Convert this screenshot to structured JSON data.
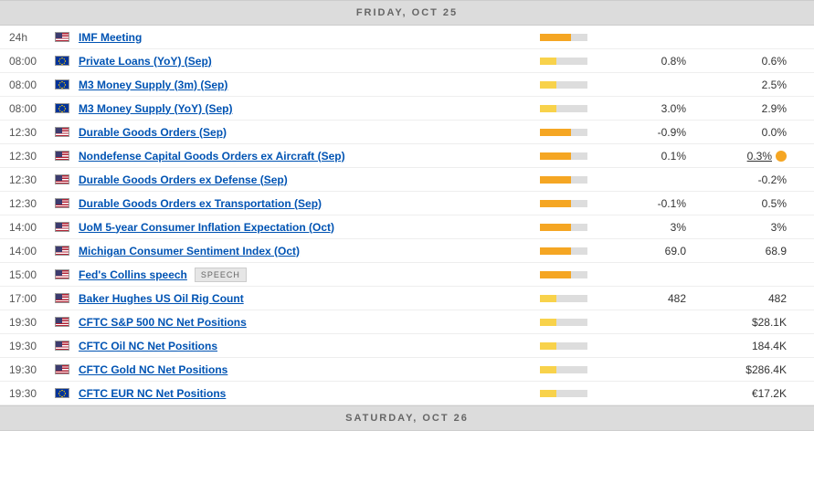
{
  "colors": {
    "bar_bg": "#dddddd",
    "bar_orange": "#f5a623",
    "bar_yellow": "#f8d24b",
    "link": "#0053b3"
  },
  "headers": {
    "friday": "FRIDAY, OCT 25",
    "saturday": "SATURDAY, OCT 26"
  },
  "events": [
    {
      "time": "24h",
      "flag": "us",
      "name": "IMF Meeting",
      "bar_color": "#f5a623",
      "bar_pct": 65,
      "val1": "",
      "val2": ""
    },
    {
      "time": "08:00",
      "flag": "eu",
      "name": "Private Loans (YoY) (Sep)",
      "bar_color": "#f8d24b",
      "bar_pct": 35,
      "val1": "0.8%",
      "val2": "0.6%"
    },
    {
      "time": "08:00",
      "flag": "eu",
      "name": "M3 Money Supply (3m) (Sep)",
      "bar_color": "#f8d24b",
      "bar_pct": 35,
      "val1": "",
      "val2": "2.5%"
    },
    {
      "time": "08:00",
      "flag": "eu",
      "name": "M3 Money Supply (YoY) (Sep)",
      "bar_color": "#f8d24b",
      "bar_pct": 35,
      "val1": "3.0%",
      "val2": "2.9%"
    },
    {
      "time": "12:30",
      "flag": "us",
      "name": "Durable Goods Orders (Sep)",
      "bar_color": "#f5a623",
      "bar_pct": 65,
      "val1": "-0.9%",
      "val2": "0.0%"
    },
    {
      "time": "12:30",
      "flag": "us",
      "name": "Nondefense Capital Goods Orders ex Aircraft (Sep)",
      "bar_color": "#f5a623",
      "bar_pct": 65,
      "val1": "0.1%",
      "val2": "0.3%",
      "val2_icon": true,
      "val2_link": true
    },
    {
      "time": "12:30",
      "flag": "us",
      "name": "Durable Goods Orders ex Defense (Sep)",
      "bar_color": "#f5a623",
      "bar_pct": 65,
      "val1": "",
      "val2": "-0.2%"
    },
    {
      "time": "12:30",
      "flag": "us",
      "name": "Durable Goods Orders ex Transportation (Sep)",
      "bar_color": "#f5a623",
      "bar_pct": 65,
      "val1": "-0.1%",
      "val2": "0.5%"
    },
    {
      "time": "14:00",
      "flag": "us",
      "name": "UoM 5-year Consumer Inflation Expectation (Oct)",
      "bar_color": "#f5a623",
      "bar_pct": 65,
      "val1": "3%",
      "val2": "3%"
    },
    {
      "time": "14:00",
      "flag": "us",
      "name": "Michigan Consumer Sentiment Index (Oct)",
      "bar_color": "#f5a623",
      "bar_pct": 65,
      "val1": "69.0",
      "val2": "68.9"
    },
    {
      "time": "15:00",
      "flag": "us",
      "name": "Fed's Collins speech",
      "badge": "SPEECH",
      "bar_color": "#f5a623",
      "bar_pct": 65,
      "val1": "",
      "val2": ""
    },
    {
      "time": "17:00",
      "flag": "us",
      "name": "Baker Hughes US Oil Rig Count",
      "bar_color": "#f8d24b",
      "bar_pct": 35,
      "val1": "482",
      "val2": "482"
    },
    {
      "time": "19:30",
      "flag": "us",
      "name": "CFTC S&P 500 NC Net Positions",
      "bar_color": "#f8d24b",
      "bar_pct": 35,
      "val1": "",
      "val2": "$28.1K"
    },
    {
      "time": "19:30",
      "flag": "us",
      "name": "CFTC Oil NC Net Positions",
      "bar_color": "#f8d24b",
      "bar_pct": 35,
      "val1": "",
      "val2": "184.4K"
    },
    {
      "time": "19:30",
      "flag": "us",
      "name": "CFTC Gold NC Net Positions",
      "bar_color": "#f8d24b",
      "bar_pct": 35,
      "val1": "",
      "val2": "$286.4K"
    },
    {
      "time": "19:30",
      "flag": "eu",
      "name": "CFTC EUR NC Net Positions",
      "bar_color": "#f8d24b",
      "bar_pct": 35,
      "val1": "",
      "val2": "€17.2K"
    }
  ]
}
